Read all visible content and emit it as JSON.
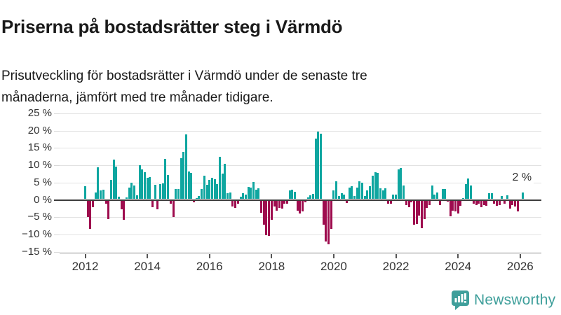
{
  "title": "Priserna på bostadsrätter steg i Värmdö",
  "subtitle": "Prisutveckling för bostadsrätter i Värmdö under de senaste tre månaderna, jämfört med tre månader tidigare.",
  "chart_data": {
    "type": "bar",
    "unit": "%",
    "frequency": "monthly",
    "start_year": 2012,
    "start_month": 1,
    "title": "Priserna på bostadsrätter steg i Värmdö",
    "xlabel": "",
    "ylabel": "",
    "ylim": [
      -15.5,
      26
    ],
    "grid": true,
    "y_ticks": [
      {
        "value": 25,
        "label": "25 %"
      },
      {
        "value": 20,
        "label": "20 %"
      },
      {
        "value": 15,
        "label": "15 %"
      },
      {
        "value": 10,
        "label": "10 %"
      },
      {
        "value": 5,
        "label": "5 %"
      },
      {
        "value": 0,
        "label": "0 %"
      },
      {
        "value": -5,
        "label": "−5 %"
      },
      {
        "value": -10,
        "label": "−10 %"
      },
      {
        "value": -15,
        "label": "−15 %"
      }
    ],
    "x_tick_years": [
      2012,
      2014,
      2016,
      2018,
      2020,
      2022,
      2024,
      2026
    ],
    "values": [
      3.8,
      -4.8,
      -8.2,
      -2.0,
      2.0,
      9.3,
      2.5,
      2.8,
      -1.0,
      -5.4,
      5.6,
      11.5,
      9.5,
      0.8,
      -2.5,
      -5.5,
      0.5,
      3.3,
      4.8,
      4.0,
      1.1,
      9.8,
      8.7,
      7.9,
      6.2,
      6.3,
      -1.9,
      4.2,
      -2.6,
      4.3,
      4.5,
      11.7,
      6.9,
      -1.0,
      -4.7,
      3.0,
      3.0,
      11.8,
      13.7,
      18.8,
      8.0,
      7.7,
      -0.6,
      0.3,
      0.9,
      2.9,
      6.7,
      4.2,
      5.5,
      6.2,
      5.7,
      4.4,
      12.3,
      7.4,
      10.3,
      1.8,
      2.0,
      -1.8,
      -2.1,
      -0.9,
      0.8,
      1.7,
      1.3,
      3.5,
      3.3,
      5.0,
      2.8,
      3.2,
      -3.6,
      -7.0,
      -10.0,
      -10.3,
      -5.5,
      -1.7,
      -3.0,
      -2.1,
      -2.4,
      -0.9,
      -1.0,
      2.5,
      2.7,
      2.2,
      -2.9,
      -3.7,
      -3.2,
      -0.5,
      0.6,
      1.1,
      1.5,
      17.6,
      19.5,
      19.0,
      -7.0,
      -11.8,
      -12.7,
      -8.3,
      2.6,
      5.2,
      1.0,
      1.8,
      1.3,
      -0.8,
      3.3,
      3.7,
      1.0,
      3.3,
      5.2,
      4.8,
      1.0,
      2.5,
      3.7,
      6.7,
      7.9,
      7.5,
      3.1,
      2.6,
      3.2,
      -0.9,
      -0.9,
      1.3,
      1.3,
      8.7,
      9.1,
      4.0,
      -1.4,
      -1.9,
      -0.5,
      -7.0,
      -6.8,
      -4.3,
      -8.0,
      -5.3,
      -2.2,
      -1.4,
      4.0,
      1.4,
      2.0,
      -1.4,
      3.0,
      3.0,
      -0.3,
      -4.6,
      -2.9,
      -3.2,
      -3.7,
      -1.6,
      0.3,
      4.3,
      6.0,
      3.9,
      -0.9,
      -1.4,
      -0.9,
      -1.9,
      -1.4,
      -1.6,
      1.8,
      1.8,
      -1.0,
      -1.6,
      -1.4,
      1.0,
      -0.9,
      1.1,
      -2.4,
      -1.4,
      -1.7,
      -3.2,
      0.0,
      2.0
    ],
    "last_value_label": "2 %",
    "legend": null,
    "colors": {
      "positive": "#0fa6a0",
      "negative": "#9e0c4e",
      "zero_line": "#3c3c3c",
      "grid": "#e2e2e2"
    }
  },
  "footer": {
    "brand": "Newsworthy",
    "brand_color": "#3f9f9b",
    "logo_icon": "chart-speech-bubble-icon"
  }
}
